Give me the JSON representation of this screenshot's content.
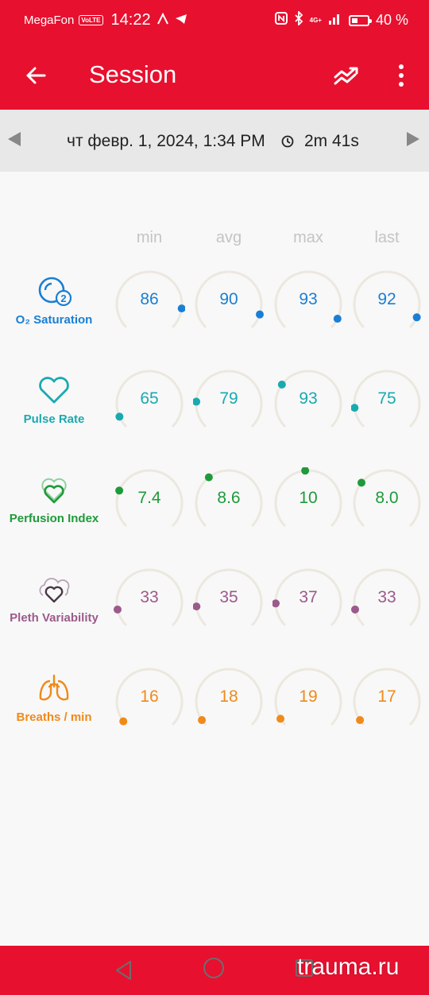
{
  "status_bar": {
    "carrier": "MegaFon",
    "volte": "VoLTE",
    "time": "14:22",
    "network": "4G+",
    "battery_percent": "40 %",
    "battery_level": 0.4
  },
  "app_bar": {
    "title": "Session",
    "back_icon": "arrow-left-icon",
    "trend_icon": "trend-icon",
    "menu_icon": "more-vert-icon"
  },
  "session": {
    "date": "чт февр. 1, 2024, 1:34 PM",
    "duration": "2m 41s"
  },
  "columns": [
    "min",
    "avg",
    "max",
    "last"
  ],
  "metrics": [
    {
      "name": "O₂ Saturation",
      "icon": "o2-icon",
      "color": "#1a7fd4",
      "values": [
        "86",
        "90",
        "93",
        "92"
      ],
      "levels": [
        0.86,
        0.9,
        0.93,
        0.92
      ]
    },
    {
      "name": "Pulse Rate",
      "icon": "heart-icon",
      "color": "#19aab0",
      "values": [
        "65",
        "79",
        "93",
        "75"
      ],
      "levels": [
        0.08,
        0.18,
        0.3,
        0.14
      ]
    },
    {
      "name": "Perfusion Index",
      "icon": "perfusion-icon",
      "color": "#1f9a3a",
      "values": [
        "7.4",
        "8.6",
        "10",
        "8.0"
      ],
      "levels": [
        0.25,
        0.36,
        0.48,
        0.31
      ]
    },
    {
      "name": "Pleth Variability",
      "icon": "pleth-icon",
      "color": "#9c5a8c",
      "values": [
        "33",
        "35",
        "37",
        "33"
      ],
      "levels": [
        0.12,
        0.14,
        0.16,
        0.12
      ]
    },
    {
      "name": "Breaths / min",
      "icon": "lungs-icon",
      "color": "#f08a1a",
      "values": [
        "16",
        "18",
        "19",
        "17"
      ],
      "levels": [
        0.03,
        0.04,
        0.05,
        0.04
      ]
    }
  ],
  "watermark": "trauma.ru"
}
